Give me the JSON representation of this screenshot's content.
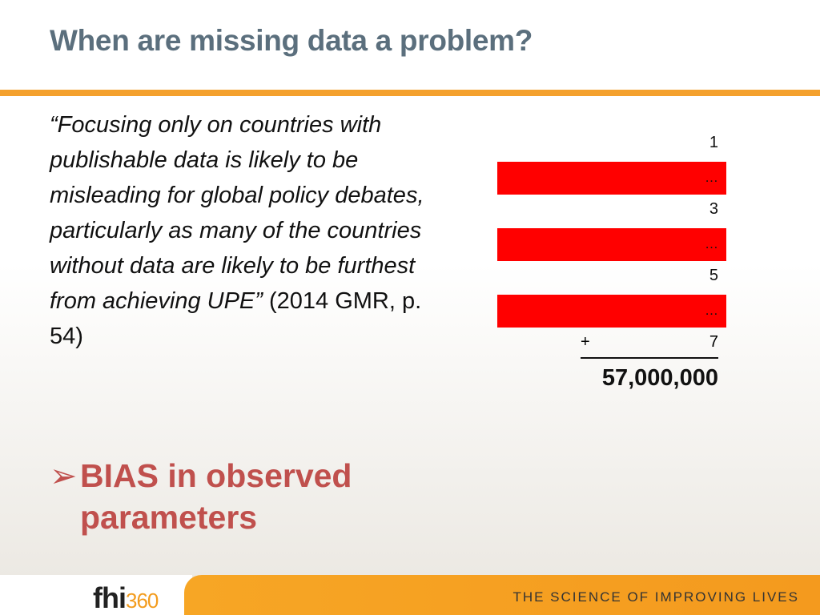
{
  "slide": {
    "title": "When are missing data a problem?",
    "quote_italic": "“Focusing only on countries with publishable data is likely to be misleading for global policy debates, particularly as many of the countries without data are likely to be furthest from achieving UPE”",
    "quote_citation": " (2014 GMR, p. 54)",
    "bias_bullet": "➢",
    "bias_line1": "BIAS in observed",
    "bias_line2": "parameters"
  },
  "tally": {
    "rows": [
      {
        "value": "1",
        "highlighted": false
      },
      {
        "value": "…",
        "highlighted": true
      },
      {
        "value": "3",
        "highlighted": false
      },
      {
        "value": "…",
        "highlighted": true
      },
      {
        "value": "5",
        "highlighted": false
      },
      {
        "value": "…",
        "highlighted": true
      }
    ],
    "plus_sign": "+",
    "last_value": "7",
    "total": "57,000,000",
    "highlight_color": "#ff0000"
  },
  "footer": {
    "logo_fhi": "fhi",
    "logo_360": "360",
    "tagline": "THE SCIENCE OF IMPROVING LIVES"
  },
  "colors": {
    "title": "#5b6f7d",
    "accent_orange": "#f4a12d",
    "bias_red": "#c0504d"
  }
}
